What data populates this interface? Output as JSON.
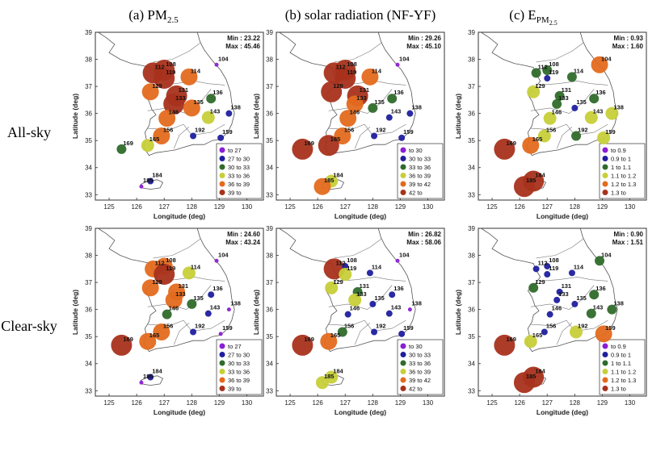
{
  "figure": {
    "col_titles": [
      {
        "main": "(a) PM",
        "sub": "2.5",
        "tail": ""
      },
      {
        "main": "(b) solar radiation (NF-YF)",
        "sub": "",
        "tail": ""
      },
      {
        "main": "(c) E",
        "sub": "PM",
        "subsub": "2.5",
        "tail": ""
      }
    ],
    "row_labels": [
      "All-sky",
      "Clear-sky"
    ]
  },
  "chart_data": [
    {
      "type": "scatter",
      "panel": "a-all",
      "xlabel": "Longitude (deg)",
      "ylabel": "Latitude (deg)",
      "xlim": [
        124.5,
        130.6
      ],
      "ylim": [
        32.8,
        39
      ],
      "xticks": [
        125,
        126,
        127,
        128,
        129,
        130
      ],
      "yticks": [
        33,
        34,
        35,
        36,
        37,
        38,
        39
      ],
      "min": "Min : 23.22",
      "max": "Max : 45.46",
      "legend": [
        "to 27",
        "27 to 30",
        "30 to 33",
        "33 to 36",
        "36 to 39",
        "39 to"
      ],
      "legend_colors": [
        "#8b1fd4",
        "#1f1f9e",
        "#2f6b2a",
        "#c7cf38",
        "#e46a1e",
        "#a8321c"
      ],
      "points": [
        {
          "id": "112",
          "lon": 126.6,
          "lat": 37.5,
          "cls": 5
        },
        {
          "id": "108",
          "lon": 127.0,
          "lat": 37.6,
          "cls": 5
        },
        {
          "id": "119",
          "lon": 127.0,
          "lat": 37.3,
          "cls": 5
        },
        {
          "id": "104",
          "lon": 128.9,
          "lat": 37.8,
          "cls": 0
        },
        {
          "id": "114",
          "lon": 127.9,
          "lat": 37.35,
          "cls": 4
        },
        {
          "id": "129",
          "lon": 126.5,
          "lat": 36.8,
          "cls": 4
        },
        {
          "id": "131",
          "lon": 127.45,
          "lat": 36.65,
          "cls": 5
        },
        {
          "id": "133",
          "lon": 127.35,
          "lat": 36.35,
          "cls": 5
        },
        {
          "id": "135",
          "lon": 128.0,
          "lat": 36.2,
          "cls": 4
        },
        {
          "id": "136",
          "lon": 128.7,
          "lat": 36.55,
          "cls": 2
        },
        {
          "id": "143",
          "lon": 128.6,
          "lat": 35.85,
          "cls": 3
        },
        {
          "id": "138",
          "lon": 129.35,
          "lat": 36.0,
          "cls": 1
        },
        {
          "id": "146",
          "lon": 127.1,
          "lat": 35.82,
          "cls": 4
        },
        {
          "id": "156",
          "lon": 126.9,
          "lat": 35.17,
          "cls": 4
        },
        {
          "id": "192",
          "lon": 128.05,
          "lat": 35.17,
          "cls": 1
        },
        {
          "id": "159",
          "lon": 129.05,
          "lat": 35.1,
          "cls": 1
        },
        {
          "id": "165",
          "lon": 126.4,
          "lat": 34.82,
          "cls": 3
        },
        {
          "id": "169",
          "lon": 125.45,
          "lat": 34.68,
          "cls": 2
        },
        {
          "id": "184",
          "lon": 126.5,
          "lat": 33.5,
          "cls": 1
        },
        {
          "id": "185",
          "lon": 126.17,
          "lat": 33.3,
          "cls": 0
        }
      ]
    },
    {
      "type": "scatter",
      "panel": "b-all",
      "xlabel": "Longitude (deg)",
      "ylabel": "Latitude (deg)",
      "xlim": [
        124.5,
        130.6
      ],
      "ylim": [
        32.8,
        39
      ],
      "xticks": [
        125,
        126,
        127,
        128,
        129,
        130
      ],
      "yticks": [
        33,
        34,
        35,
        36,
        37,
        38,
        39
      ],
      "min": "Min : 29.26",
      "max": "Max : 45.10",
      "legend": [
        "to 30",
        "30 to 33",
        "33 to 36",
        "36 to 39",
        "39 to 42",
        "42 to"
      ],
      "legend_colors": [
        "#8b1fd4",
        "#1f1f9e",
        "#2f6b2a",
        "#c7cf38",
        "#e46a1e",
        "#a8321c"
      ],
      "points": [
        {
          "id": "112",
          "lon": 126.6,
          "lat": 37.5,
          "cls": 5
        },
        {
          "id": "108",
          "lon": 127.0,
          "lat": 37.6,
          "cls": 5
        },
        {
          "id": "119",
          "lon": 127.0,
          "lat": 37.3,
          "cls": 5
        },
        {
          "id": "104",
          "lon": 128.9,
          "lat": 37.8,
          "cls": 0
        },
        {
          "id": "114",
          "lon": 127.9,
          "lat": 37.35,
          "cls": 4
        },
        {
          "id": "129",
          "lon": 126.5,
          "lat": 36.8,
          "cls": 5
        },
        {
          "id": "131",
          "lon": 127.45,
          "lat": 36.65,
          "cls": 5
        },
        {
          "id": "133",
          "lon": 127.35,
          "lat": 36.35,
          "cls": 4
        },
        {
          "id": "135",
          "lon": 128.0,
          "lat": 36.2,
          "cls": 2
        },
        {
          "id": "136",
          "lon": 128.7,
          "lat": 36.55,
          "cls": 2
        },
        {
          "id": "143",
          "lon": 128.6,
          "lat": 35.85,
          "cls": 1
        },
        {
          "id": "138",
          "lon": 129.35,
          "lat": 36.0,
          "cls": 1
        },
        {
          "id": "146",
          "lon": 127.1,
          "lat": 35.82,
          "cls": 4
        },
        {
          "id": "156",
          "lon": 126.9,
          "lat": 35.17,
          "cls": 4
        },
        {
          "id": "192",
          "lon": 128.05,
          "lat": 35.17,
          "cls": 1
        },
        {
          "id": "159",
          "lon": 129.05,
          "lat": 35.1,
          "cls": 1
        },
        {
          "id": "165",
          "lon": 126.4,
          "lat": 34.82,
          "cls": 5
        },
        {
          "id": "169",
          "lon": 125.45,
          "lat": 34.68,
          "cls": 5
        },
        {
          "id": "184",
          "lon": 126.5,
          "lat": 33.5,
          "cls": 3
        },
        {
          "id": "185",
          "lon": 126.17,
          "lat": 33.3,
          "cls": 4
        }
      ]
    },
    {
      "type": "scatter",
      "panel": "c-all",
      "xlabel": "Longitude (deg)",
      "ylabel": "Latitude (deg)",
      "xlim": [
        124.5,
        130.6
      ],
      "ylim": [
        32.8,
        39
      ],
      "xticks": [
        125,
        126,
        127,
        128,
        129,
        130
      ],
      "yticks": [
        33,
        34,
        35,
        36,
        37,
        38,
        39
      ],
      "min": "Min : 0.93",
      "max": "Max : 1.60",
      "legend": [
        "to 0.9",
        "0.9 to 1",
        "1 to 1.1",
        "1.1 to 1.2",
        "1.2 to 1.3",
        "1.3 to"
      ],
      "legend_colors": [
        "#8b1fd4",
        "#1f1f9e",
        "#2f6b2a",
        "#c7cf38",
        "#e46a1e",
        "#a8321c"
      ],
      "points": [
        {
          "id": "112",
          "lon": 126.6,
          "lat": 37.5,
          "cls": 2
        },
        {
          "id": "108",
          "lon": 127.0,
          "lat": 37.6,
          "cls": 2
        },
        {
          "id": "119",
          "lon": 127.0,
          "lat": 37.3,
          "cls": 1
        },
        {
          "id": "104",
          "lon": 128.9,
          "lat": 37.8,
          "cls": 4
        },
        {
          "id": "114",
          "lon": 127.9,
          "lat": 37.35,
          "cls": 2
        },
        {
          "id": "129",
          "lon": 126.5,
          "lat": 36.8,
          "cls": 3
        },
        {
          "id": "131",
          "lon": 127.45,
          "lat": 36.65,
          "cls": 2
        },
        {
          "id": "133",
          "lon": 127.35,
          "lat": 36.35,
          "cls": 2
        },
        {
          "id": "135",
          "lon": 128.0,
          "lat": 36.2,
          "cls": 1
        },
        {
          "id": "136",
          "lon": 128.7,
          "lat": 36.55,
          "cls": 2
        },
        {
          "id": "143",
          "lon": 128.6,
          "lat": 35.85,
          "cls": 3
        },
        {
          "id": "138",
          "lon": 129.35,
          "lat": 36.0,
          "cls": 3
        },
        {
          "id": "146",
          "lon": 127.1,
          "lat": 35.82,
          "cls": 3
        },
        {
          "id": "156",
          "lon": 126.9,
          "lat": 35.17,
          "cls": 3
        },
        {
          "id": "192",
          "lon": 128.05,
          "lat": 35.17,
          "cls": 2
        },
        {
          "id": "159",
          "lon": 129.05,
          "lat": 35.1,
          "cls": 3
        },
        {
          "id": "165",
          "lon": 126.4,
          "lat": 34.82,
          "cls": 4
        },
        {
          "id": "169",
          "lon": 125.45,
          "lat": 34.68,
          "cls": 5
        },
        {
          "id": "184",
          "lon": 126.5,
          "lat": 33.5,
          "cls": 5
        },
        {
          "id": "185",
          "lon": 126.17,
          "lat": 33.3,
          "cls": 5
        }
      ]
    },
    {
      "type": "scatter",
      "panel": "a-clear",
      "xlabel": "Longitude (deg)",
      "ylabel": "Latitude (deg)",
      "xlim": [
        124.5,
        130.6
      ],
      "ylim": [
        32.8,
        39
      ],
      "xticks": [
        125,
        126,
        127,
        128,
        129,
        130
      ],
      "yticks": [
        33,
        34,
        35,
        36,
        37,
        38,
        39
      ],
      "min": "Min : 24.60",
      "max": "Max : 43.24",
      "legend": [
        "to 27",
        "27 to 30",
        "30 to 33",
        "33 to 36",
        "36 to 39",
        "39 to"
      ],
      "legend_colors": [
        "#8b1fd4",
        "#1f1f9e",
        "#2f6b2a",
        "#c7cf38",
        "#e46a1e",
        "#a8321c"
      ],
      "points": [
        {
          "id": "112",
          "lon": 126.6,
          "lat": 37.5,
          "cls": 4
        },
        {
          "id": "108",
          "lon": 127.0,
          "lat": 37.6,
          "cls": 4
        },
        {
          "id": "119",
          "lon": 127.0,
          "lat": 37.3,
          "cls": 5
        },
        {
          "id": "104",
          "lon": 128.9,
          "lat": 37.8,
          "cls": 0
        },
        {
          "id": "114",
          "lon": 127.9,
          "lat": 37.35,
          "cls": 3
        },
        {
          "id": "129",
          "lon": 126.5,
          "lat": 36.8,
          "cls": 4
        },
        {
          "id": "131",
          "lon": 127.45,
          "lat": 36.65,
          "cls": 4
        },
        {
          "id": "133",
          "lon": 127.35,
          "lat": 36.35,
          "cls": 4
        },
        {
          "id": "135",
          "lon": 128.0,
          "lat": 36.2,
          "cls": 2
        },
        {
          "id": "136",
          "lon": 128.7,
          "lat": 36.55,
          "cls": 1
        },
        {
          "id": "143",
          "lon": 128.6,
          "lat": 35.85,
          "cls": 1
        },
        {
          "id": "138",
          "lon": 129.35,
          "lat": 36.0,
          "cls": 0
        },
        {
          "id": "146",
          "lon": 127.1,
          "lat": 35.82,
          "cls": 2
        },
        {
          "id": "156",
          "lon": 126.9,
          "lat": 35.17,
          "cls": 4
        },
        {
          "id": "192",
          "lon": 128.05,
          "lat": 35.17,
          "cls": 1
        },
        {
          "id": "159",
          "lon": 129.05,
          "lat": 35.1,
          "cls": 0
        },
        {
          "id": "165",
          "lon": 126.4,
          "lat": 34.82,
          "cls": 4
        },
        {
          "id": "169",
          "lon": 125.45,
          "lat": 34.68,
          "cls": 5
        },
        {
          "id": "184",
          "lon": 126.5,
          "lat": 33.5,
          "cls": 1
        },
        {
          "id": "185",
          "lon": 126.17,
          "lat": 33.3,
          "cls": 0
        }
      ]
    },
    {
      "type": "scatter",
      "panel": "b-clear",
      "xlabel": "Longitude (deg)",
      "ylabel": "Latitude (deg)",
      "xlim": [
        124.5,
        130.6
      ],
      "ylim": [
        32.8,
        39
      ],
      "xticks": [
        125,
        126,
        127,
        128,
        129,
        130
      ],
      "yticks": [
        33,
        34,
        35,
        36,
        37,
        38,
        39
      ],
      "min": "Min : 26.82",
      "max": "Max : 58.06",
      "legend": [
        "to 30",
        "30 to 33",
        "33 to 36",
        "36 to 39",
        "39 to 42",
        "42 to"
      ],
      "legend_colors": [
        "#8b1fd4",
        "#1f1f9e",
        "#2f6b2a",
        "#c7cf38",
        "#e46a1e",
        "#a8321c"
      ],
      "points": [
        {
          "id": "112",
          "lon": 126.6,
          "lat": 37.5,
          "cls": 5
        },
        {
          "id": "108",
          "lon": 127.0,
          "lat": 37.6,
          "cls": 1
        },
        {
          "id": "119",
          "lon": 127.0,
          "lat": 37.3,
          "cls": 3
        },
        {
          "id": "104",
          "lon": 128.9,
          "lat": 37.8,
          "cls": 0
        },
        {
          "id": "114",
          "lon": 127.9,
          "lat": 37.35,
          "cls": 1
        },
        {
          "id": "129",
          "lon": 126.5,
          "lat": 36.8,
          "cls": 3
        },
        {
          "id": "131",
          "lon": 127.45,
          "lat": 36.65,
          "cls": 2
        },
        {
          "id": "133",
          "lon": 127.35,
          "lat": 36.35,
          "cls": 3
        },
        {
          "id": "135",
          "lon": 128.0,
          "lat": 36.2,
          "cls": 1
        },
        {
          "id": "136",
          "lon": 128.7,
          "lat": 36.55,
          "cls": 1
        },
        {
          "id": "143",
          "lon": 128.6,
          "lat": 35.85,
          "cls": 1
        },
        {
          "id": "138",
          "lon": 129.35,
          "lat": 36.0,
          "cls": 0
        },
        {
          "id": "146",
          "lon": 127.1,
          "lat": 35.82,
          "cls": 1
        },
        {
          "id": "156",
          "lon": 126.9,
          "lat": 35.17,
          "cls": 2
        },
        {
          "id": "192",
          "lon": 128.05,
          "lat": 35.17,
          "cls": 1
        },
        {
          "id": "159",
          "lon": 129.05,
          "lat": 35.1,
          "cls": 1
        },
        {
          "id": "165",
          "lon": 126.4,
          "lat": 34.82,
          "cls": 4
        },
        {
          "id": "169",
          "lon": 125.45,
          "lat": 34.68,
          "cls": 5
        },
        {
          "id": "184",
          "lon": 126.5,
          "lat": 33.5,
          "cls": 3
        },
        {
          "id": "185",
          "lon": 126.17,
          "lat": 33.3,
          "cls": 3
        }
      ]
    },
    {
      "type": "scatter",
      "panel": "c-clear",
      "xlabel": "Longitude (deg)",
      "ylabel": "Latitude (deg)",
      "xlim": [
        124.5,
        130.6
      ],
      "ylim": [
        32.8,
        39
      ],
      "xticks": [
        125,
        126,
        127,
        128,
        129,
        130
      ],
      "yticks": [
        33,
        34,
        35,
        36,
        37,
        38,
        39
      ],
      "min": "Min : 0.90",
      "max": "Max : 1.51",
      "legend": [
        "to 0.9",
        "0.9 to 1",
        "1 to 1.1",
        "1.1 to 1.2",
        "1.2 to 1.3",
        "1.3 to"
      ],
      "legend_colors": [
        "#8b1fd4",
        "#1f1f9e",
        "#2f6b2a",
        "#c7cf38",
        "#e46a1e",
        "#a8321c"
      ],
      "points": [
        {
          "id": "112",
          "lon": 126.6,
          "lat": 37.5,
          "cls": 1
        },
        {
          "id": "108",
          "lon": 127.0,
          "lat": 37.6,
          "cls": 1
        },
        {
          "id": "119",
          "lon": 127.0,
          "lat": 37.3,
          "cls": 1
        },
        {
          "id": "104",
          "lon": 128.9,
          "lat": 37.8,
          "cls": 2
        },
        {
          "id": "114",
          "lon": 127.9,
          "lat": 37.35,
          "cls": 1
        },
        {
          "id": "129",
          "lon": 126.5,
          "lat": 36.8,
          "cls": 2
        },
        {
          "id": "131",
          "lon": 127.45,
          "lat": 36.65,
          "cls": 1
        },
        {
          "id": "133",
          "lon": 127.35,
          "lat": 36.35,
          "cls": 1
        },
        {
          "id": "135",
          "lon": 128.0,
          "lat": 36.2,
          "cls": 1
        },
        {
          "id": "136",
          "lon": 128.7,
          "lat": 36.55,
          "cls": 2
        },
        {
          "id": "143",
          "lon": 128.6,
          "lat": 35.85,
          "cls": 2
        },
        {
          "id": "138",
          "lon": 129.35,
          "lat": 36.0,
          "cls": 2
        },
        {
          "id": "146",
          "lon": 127.1,
          "lat": 35.82,
          "cls": 1
        },
        {
          "id": "156",
          "lon": 126.9,
          "lat": 35.17,
          "cls": 1
        },
        {
          "id": "192",
          "lon": 128.05,
          "lat": 35.17,
          "cls": 3
        },
        {
          "id": "159",
          "lon": 129.05,
          "lat": 35.1,
          "cls": 4
        },
        {
          "id": "165",
          "lon": 126.4,
          "lat": 34.82,
          "cls": 3
        },
        {
          "id": "169",
          "lon": 125.45,
          "lat": 34.68,
          "cls": 5
        },
        {
          "id": "184",
          "lon": 126.5,
          "lat": 33.5,
          "cls": 5
        },
        {
          "id": "185",
          "lon": 126.17,
          "lat": 33.3,
          "cls": 5
        }
      ]
    }
  ]
}
